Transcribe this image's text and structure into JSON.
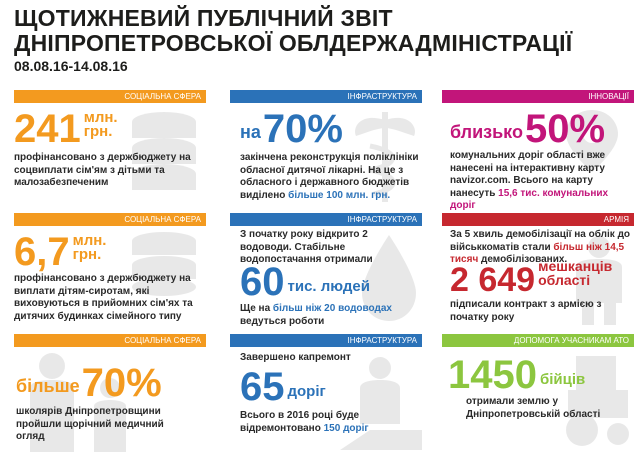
{
  "header": {
    "title_line1": "ЩОТИЖНЕВИЙ ПУБЛІЧНИЙ ЗВІТ",
    "title_line2": "ДНІПРОПЕТРОВСЬКОЇ ОБЛДЕРЖАДМІНІСТРАЦІЇ",
    "dates": "08.08.16-14.08.16"
  },
  "colors": {
    "orange": "#f39a1f",
    "blue": "#2b72b8",
    "magenta": "#c2157a",
    "red": "#c6282f",
    "green": "#8cc63f"
  },
  "cards": {
    "c1": {
      "category": "СОЦІАЛЬНА СФЕРА",
      "value": "241",
      "unit_line1": "млн.",
      "unit_line2": "грн.",
      "text": "профінансовано з держбюджету на соцвиплати сім'ям з дітьми та малозабезпеченим",
      "icon": "coins-stack-icon"
    },
    "c2": {
      "category": "ІНФРАСТРУКТУРА",
      "prefix": "на",
      "value": "70%",
      "text_before": "закінчена реконструкція поліклініки обласної дитячої лікарні. На це з обласного і державного бюджетів виділено ",
      "text_highlight": "більше 100 млн. грн.",
      "icon": "caduceus-icon"
    },
    "c3": {
      "category": "ІННОВАЦІЇ",
      "prefix": "близько",
      "value": "50%",
      "text_before": "комунальних доріг області вже нанесені на інтерактивну карту ",
      "text_link": "navizor.com.",
      "text_middle": " Всього на карту нанесуть ",
      "text_highlight": "15,6 тис. комунальних доріг",
      "icon": "map-pin-icon"
    },
    "c4": {
      "category": "СОЦІАЛЬНА СФЕРА",
      "value": "6,7",
      "unit_line1": "млн.",
      "unit_line2": "грн.",
      "text": "профінансовано з держбюджету на виплати дітям-сиротам, які виховуються в прийомних сім'ях та дитячих будинках сімейного типу",
      "icon": "coins-stack-icon"
    },
    "c5": {
      "category": "ІНФРАСТРУКТУРА",
      "text_top": "З початку року відкрито 2 водоводи. Стабільне водопостачання отримали",
      "value": "60",
      "unit": "тис. людей",
      "text_before": "Ще на ",
      "text_highlight": "більш ніж 20 водоводах",
      "text_after": " ведуться роботи",
      "icon": "water-drop-icon"
    },
    "c6": {
      "category": "АРМІЯ",
      "text_top_before": "За 5 хвиль демобілізації на облік до військкоматів стали ",
      "text_top_highlight": "більш ніж 14,5 тисяч",
      "text_top_after": " демобілізованих.",
      "value": "2 649",
      "unit_line1": "мешканців",
      "unit_line2": "області",
      "text": "підписали контракт з армією з початку року",
      "icon": "soldier-icon"
    },
    "c7": {
      "category": "СОЦІАЛЬНА СФЕРА",
      "prefix": "більше",
      "value": "70%",
      "text": "школярів Дніпропетровщини пройшли щорічний медичний огляд",
      "icon": "family-icon"
    },
    "c8": {
      "category": "ІНФРАСТРУКТУРА",
      "text_top": "Завершено капремонт",
      "value": "65",
      "unit": "доріг",
      "text_before": "Всього в 2016 році буде відремонтовано ",
      "text_highlight": "150 доріг",
      "icon": "road-worker-icon"
    },
    "c9": {
      "category": "ДОПОМОГА УЧАСНИКАМ АТО",
      "value": "1450",
      "unit": "бійців",
      "text": "отримали землю у Дніпропетровській області",
      "icon": "tractor-icon"
    }
  }
}
